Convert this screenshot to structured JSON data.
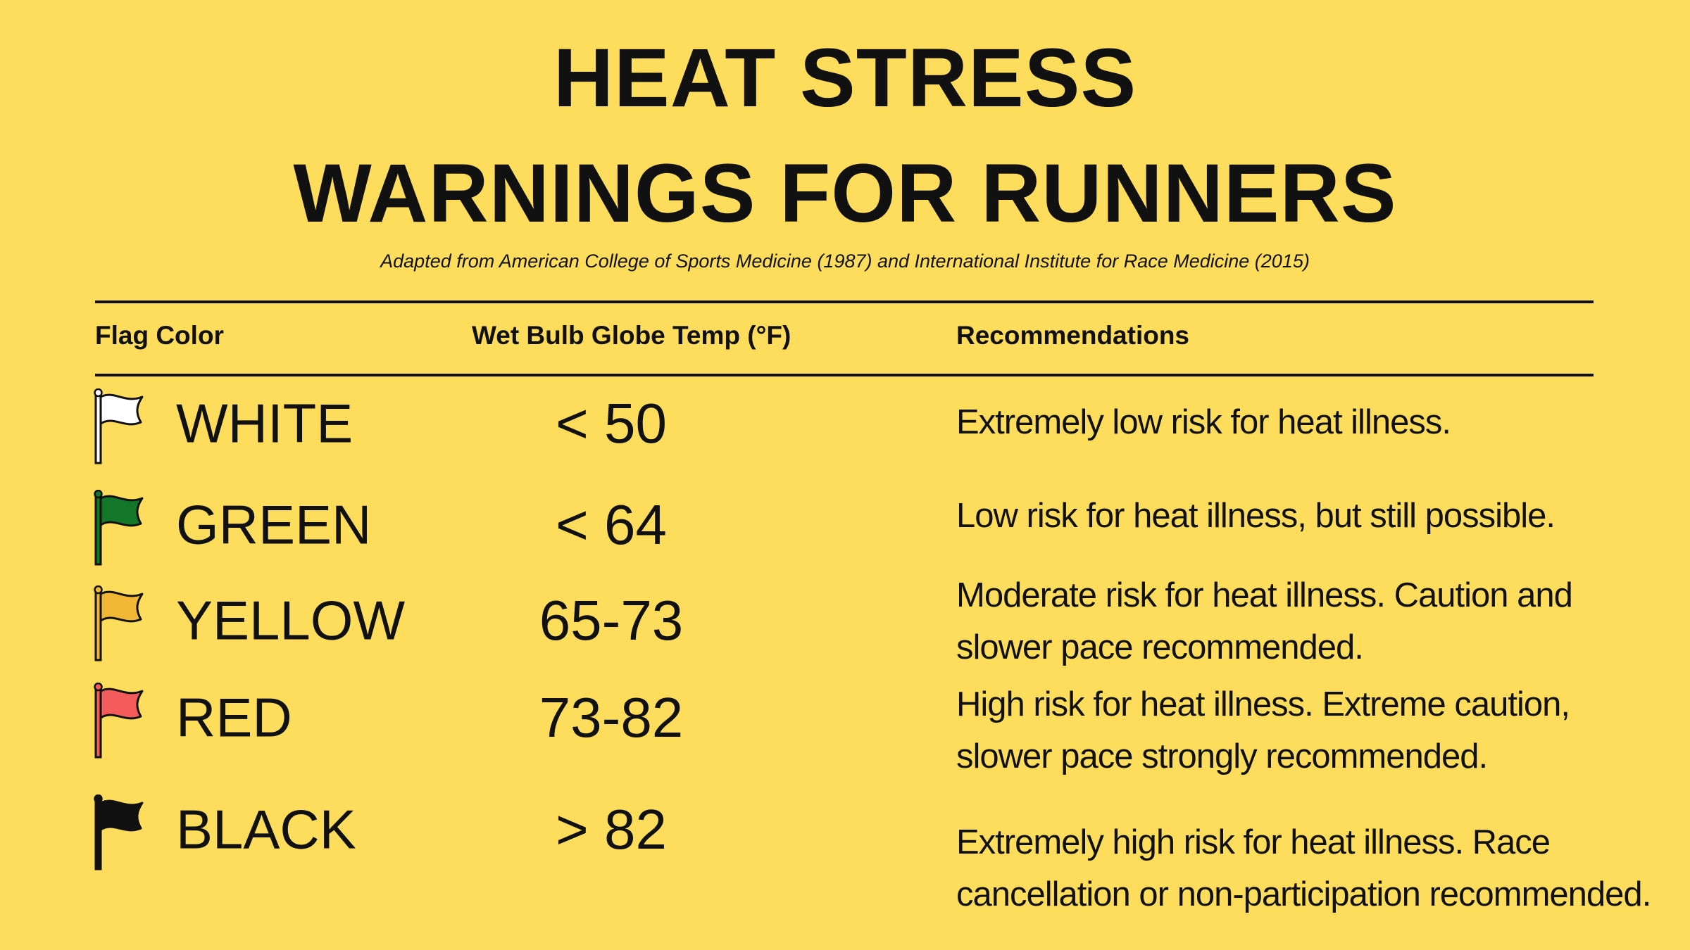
{
  "header": {
    "title": [
      "HEAT STRESS",
      "WARNINGS FOR RUNNERS"
    ],
    "subtitle": "Adapted from American College of Sports Medicine (1987) and International Institute for Race Medicine (2015)"
  },
  "table": {
    "columns": [
      "Flag Color",
      "Wet Bulb Globe Temp (°F)",
      "Recommendations"
    ],
    "rows": [
      {
        "flag_color": "#ffffff",
        "cells": [
          "WHITE",
          "< 50",
          "Extremely low risk for heat illness."
        ]
      },
      {
        "flag_color": "#13772a",
        "cells": [
          "GREEN",
          "< 64",
          "Low risk for heat illness, but still possible."
        ]
      },
      {
        "flag_color": "#f2b735",
        "cells": [
          "YELLOW",
          "65-73",
          "Moderate risk for heat illness. Caution and slower pace recommended."
        ]
      },
      {
        "flag_color": "#f45b5b",
        "cells": [
          "RED",
          "73-82",
          "High risk for heat illness. Extreme caution, slower pace strongly recommended."
        ]
      },
      {
        "flag_color": "#111111",
        "cells": [
          "BLACK",
          "> 82",
          "Extremely high risk for heat illness. Race cancellation or non-participation recommended."
        ]
      }
    ]
  }
}
